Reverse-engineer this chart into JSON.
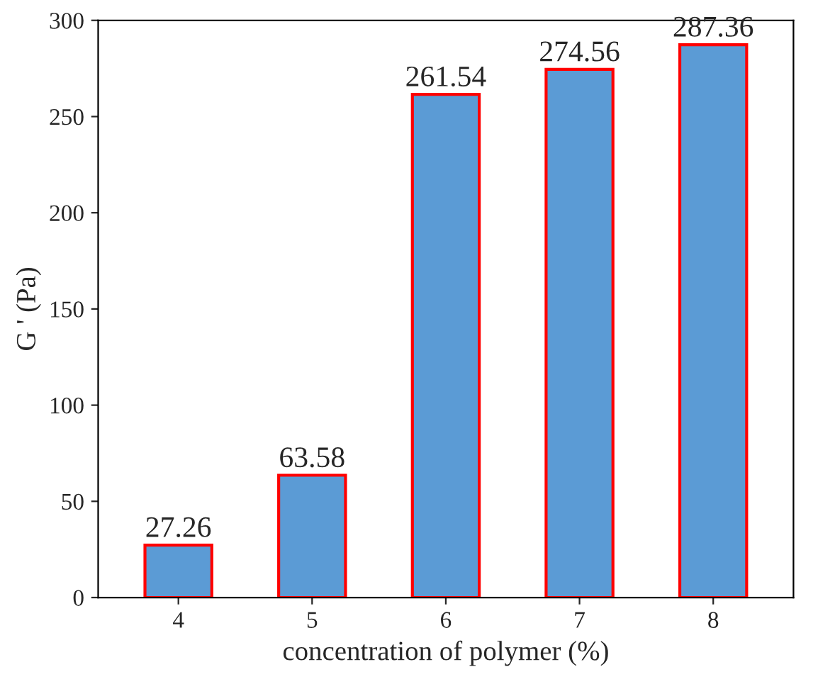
{
  "chart_data": {
    "type": "bar",
    "xlabel": "concentration of polymer (%)",
    "ylabel": "G ' (Pa)",
    "categories": [
      "4",
      "5",
      "6",
      "7",
      "8"
    ],
    "values": [
      27.26,
      63.58,
      261.54,
      274.56,
      287.36
    ],
    "color": "#5b9bd5",
    "ylim": [
      0,
      300
    ],
    "yticks": [
      0,
      50,
      100,
      150,
      200,
      250,
      300
    ],
    "data_labels": true,
    "grid": false
  }
}
